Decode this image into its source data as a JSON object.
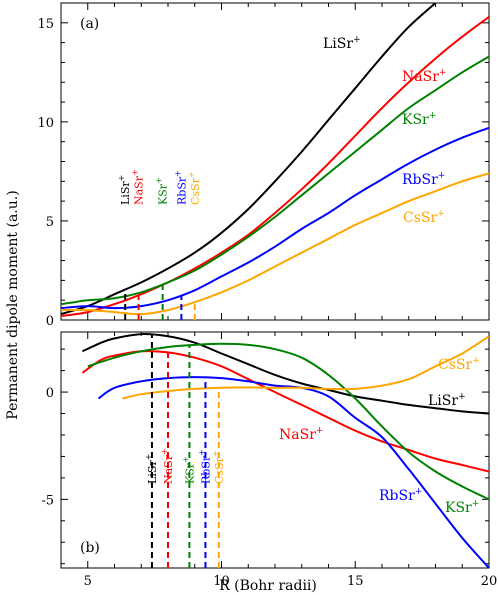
{
  "chart_data": {
    "type": "line",
    "shared_xlabel": "R (Bohr radii)",
    "shared_ylabel": "Permanent dipole moment (a.u.)",
    "xlim": [
      4,
      20
    ],
    "x_ticks": [
      5,
      10,
      15,
      20
    ],
    "panels": [
      {
        "tag": "(a)",
        "ylim": [
          0,
          16
        ],
        "y_ticks": [
          0,
          5,
          10,
          15
        ],
        "series": [
          {
            "name": "LiSr",
            "color": "#000000",
            "x": [
              4,
              5,
              6,
              7,
              8,
              9,
              10,
              11,
              12,
              13,
              14,
              15,
              16,
              17,
              18
            ],
            "y": [
              0.3,
              0.7,
              1.3,
              1.9,
              2.6,
              3.4,
              4.4,
              5.6,
              7.0,
              8.5,
              10.1,
              11.7,
              13.3,
              14.8,
              16.0
            ]
          },
          {
            "name": "NaSr",
            "color": "#ff0000",
            "x": [
              4,
              5,
              6,
              7,
              8,
              9,
              10,
              11,
              12,
              13,
              14,
              15,
              16,
              17,
              18,
              19,
              20
            ],
            "y": [
              0.2,
              0.4,
              0.8,
              1.3,
              1.9,
              2.6,
              3.4,
              4.3,
              5.4,
              6.6,
              7.9,
              9.3,
              10.7,
              12.0,
              13.2,
              14.3,
              15.3
            ]
          },
          {
            "name": "KSr",
            "color": "#008000",
            "x": [
              4,
              4.5,
              5,
              6,
              7,
              8,
              9,
              10,
              11,
              12,
              13,
              14,
              15,
              16,
              17,
              18,
              19,
              20
            ],
            "y": [
              0.8,
              0.9,
              1.0,
              1.1,
              1.4,
              1.9,
              2.5,
              3.3,
              4.2,
              5.2,
              6.3,
              7.4,
              8.5,
              9.6,
              10.7,
              11.6,
              12.5,
              13.3
            ]
          },
          {
            "name": "RbSr",
            "color": "#0000ff",
            "x": [
              4,
              5,
              6,
              7,
              8,
              9,
              10,
              11,
              12,
              13,
              14,
              15,
              16,
              17,
              18,
              19,
              20
            ],
            "y": [
              0.6,
              0.7,
              0.6,
              0.7,
              1.0,
              1.5,
              2.2,
              2.9,
              3.7,
              4.6,
              5.4,
              6.3,
              7.1,
              7.9,
              8.6,
              9.2,
              9.7
            ]
          },
          {
            "name": "CsSr",
            "color": "#ffa500",
            "x": [
              4,
              5,
              6,
              7,
              8,
              9,
              10,
              11,
              12,
              13,
              14,
              15,
              16,
              17,
              18,
              19,
              20
            ],
            "y": [
              0.5,
              0.5,
              0.4,
              0.3,
              0.5,
              0.9,
              1.4,
              2.0,
              2.7,
              3.4,
              4.1,
              4.8,
              5.4,
              6.0,
              6.5,
              7.0,
              7.4
            ]
          }
        ],
        "markers": [
          {
            "name": "LiSr",
            "x": 6.4,
            "color": "#000000"
          },
          {
            "name": "NaSr",
            "x": 6.9,
            "color": "#ff0000"
          },
          {
            "name": "KSr",
            "x": 7.8,
            "color": "#008000"
          },
          {
            "name": "RbSr",
            "x": 8.5,
            "color": "#0000ff"
          },
          {
            "name": "CsSr",
            "x": 9.0,
            "color": "#ffa500"
          }
        ]
      },
      {
        "tag": "(b)",
        "ylim": [
          -8.2,
          2.8
        ],
        "y_ticks": [
          -5,
          0
        ],
        "series": [
          {
            "name": "LiSr",
            "color": "#000000",
            "x": [
              4.8,
              5.5,
              6,
              7,
              8,
              9,
              10,
              11,
              12,
              13,
              14,
              15,
              16,
              17,
              18,
              19,
              20
            ],
            "y": [
              1.9,
              2.3,
              2.5,
              2.7,
              2.6,
              2.3,
              1.8,
              1.3,
              0.8,
              0.4,
              0.1,
              -0.2,
              -0.4,
              -0.6,
              -0.75,
              -0.9,
              -1.0
            ]
          },
          {
            "name": "NaSr",
            "color": "#ff0000",
            "x": [
              4.8,
              5.5,
              6,
              7,
              8,
              9,
              10,
              11,
              12,
              13,
              14,
              15,
              16,
              17,
              18,
              19,
              20
            ],
            "y": [
              0.9,
              1.5,
              1.7,
              1.9,
              1.85,
              1.6,
              1.2,
              0.6,
              0.0,
              -0.6,
              -1.2,
              -1.8,
              -2.3,
              -2.7,
              -3.1,
              -3.4,
              -3.7
            ]
          },
          {
            "name": "KSr",
            "color": "#008000",
            "x": [
              5,
              6,
              7,
              8,
              9,
              10,
              11,
              12,
              13,
              14,
              15,
              16,
              17,
              18,
              19,
              20
            ],
            "y": [
              1.2,
              1.6,
              1.9,
              2.1,
              2.2,
              2.25,
              2.2,
              2.0,
              1.6,
              0.8,
              -0.3,
              -1.6,
              -2.8,
              -3.7,
              -4.4,
              -5.0
            ]
          },
          {
            "name": "RbSr",
            "color": "#0000ff",
            "x": [
              5.4,
              6,
              7,
              8,
              9,
              10,
              11,
              12,
              13,
              14,
              15,
              16,
              17,
              18,
              19,
              20
            ],
            "y": [
              -0.3,
              0.2,
              0.5,
              0.65,
              0.7,
              0.65,
              0.5,
              0.3,
              0.2,
              -0.2,
              -1.2,
              -2.1,
              -3.6,
              -5.2,
              -6.8,
              -8.2
            ]
          },
          {
            "name": "CsSr",
            "color": "#ffa500",
            "x": [
              6.3,
              7,
              8,
              9,
              10,
              11,
              12,
              13,
              14,
              15,
              16,
              17,
              18,
              19,
              20
            ],
            "y": [
              -0.3,
              -0.1,
              0.05,
              0.15,
              0.2,
              0.22,
              0.2,
              0.2,
              0.15,
              0.15,
              0.3,
              0.6,
              1.2,
              1.8,
              2.6
            ]
          }
        ],
        "markers": [
          {
            "name": "LiSr",
            "x": 7.4,
            "color": "#000000"
          },
          {
            "name": "NaSr",
            "x": 8.0,
            "color": "#ff0000"
          },
          {
            "name": "KSr",
            "x": 8.8,
            "color": "#008000"
          },
          {
            "name": "RbSr",
            "x": 9.4,
            "color": "#0000ff"
          },
          {
            "name": "CsSr",
            "x": 9.9,
            "color": "#ffa500"
          }
        ]
      }
    ],
    "annotations": [
      {
        "panel": 0,
        "series": "LiSr",
        "text": "LiSr",
        "sup": "+"
      },
      {
        "panel": 0,
        "series": "NaSr",
        "text": "NaSr",
        "sup": "+"
      },
      {
        "panel": 0,
        "series": "KSr",
        "text": "KSr",
        "sup": "+"
      },
      {
        "panel": 0,
        "series": "RbSr",
        "text": "RbSr",
        "sup": "+"
      },
      {
        "panel": 0,
        "series": "CsSr",
        "text": "CsSr",
        "sup": "+"
      },
      {
        "panel": 1,
        "series": "CsSr",
        "text": "CsSr",
        "sup": "+"
      },
      {
        "panel": 1,
        "series": "LiSr",
        "text": "LiSr",
        "sup": "+"
      },
      {
        "panel": 1,
        "series": "NaSr",
        "text": "NaSr",
        "sup": "+"
      },
      {
        "panel": 1,
        "series": "RbSr",
        "text": "RbSr",
        "sup": "+"
      },
      {
        "panel": 1,
        "series": "KSr",
        "text": "KSr",
        "sup": "+"
      }
    ]
  }
}
